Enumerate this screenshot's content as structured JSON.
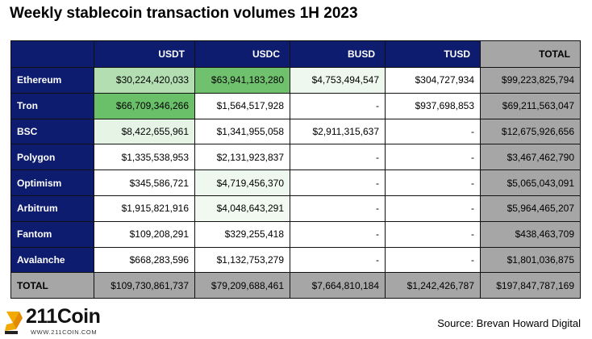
{
  "title": "Weekly stablecoin transaction volumes 1H 2023",
  "source": "Source: Brevan Howard Digital",
  "logo": {
    "text": "211Coin",
    "url": "WWW.211COIN.COM"
  },
  "colors": {
    "header_bg": "#0d1c6e",
    "total_bg": "#a6a6a6",
    "heat_max": "#6abf69",
    "heat_min": "#ffffff"
  },
  "chart_data": {
    "type": "table",
    "title": "Weekly stablecoin transaction volumes 1H 2023",
    "columns": [
      "USDT",
      "USDC",
      "BUSD",
      "TUSD",
      "TOTAL"
    ],
    "rows": [
      {
        "label": "Ethereum",
        "cells": [
          "$30,224,420,033",
          "$63,941,183,280",
          "$4,753,494,547",
          "$304,727,934",
          "$99,223,825,794"
        ],
        "values": [
          30224420033,
          63941183280,
          4753494547,
          304727934
        ]
      },
      {
        "label": "Tron",
        "cells": [
          "$66,709,346,266",
          "$1,564,517,928",
          "-",
          "$937,698,853",
          "$69,211,563,047"
        ],
        "values": [
          66709346266,
          1564517928,
          null,
          937698853
        ]
      },
      {
        "label": "BSC",
        "cells": [
          "$8,422,655,961",
          "$1,341,955,058",
          "$2,911,315,637",
          "-",
          "$12,675,926,656"
        ],
        "values": [
          8422655961,
          1341955058,
          2911315637,
          null
        ]
      },
      {
        "label": "Polygon",
        "cells": [
          "$1,335,538,953",
          "$2,131,923,837",
          "-",
          "-",
          "$3,467,462,790"
        ],
        "values": [
          1335538953,
          2131923837,
          null,
          null
        ]
      },
      {
        "label": "Optimism",
        "cells": [
          "$345,586,721",
          "$4,719,456,370",
          "-",
          "-",
          "$5,065,043,091"
        ],
        "values": [
          345586721,
          4719456370,
          null,
          null
        ]
      },
      {
        "label": "Arbitrum",
        "cells": [
          "$1,915,821,916",
          "$4,048,643,291",
          "-",
          "-",
          "$5,964,465,207"
        ],
        "values": [
          1915821916,
          4048643291,
          null,
          null
        ]
      },
      {
        "label": "Fantom",
        "cells": [
          "$109,208,291",
          "$329,255,418",
          "-",
          "-",
          "$438,463,709"
        ],
        "values": [
          109208291,
          329255418,
          null,
          null
        ]
      },
      {
        "label": "Avalanche",
        "cells": [
          "$668,283,596",
          "$1,132,753,279",
          "-",
          "-",
          "$1,801,036,875"
        ],
        "values": [
          668283596,
          1132753279,
          null,
          null
        ]
      }
    ],
    "total_row": {
      "label": "TOTAL",
      "cells": [
        "$109,730,861,737",
        "$79,209,688,461",
        "$7,664,810,184",
        "$1,242,426,787",
        "$197,847,787,169"
      ]
    }
  }
}
